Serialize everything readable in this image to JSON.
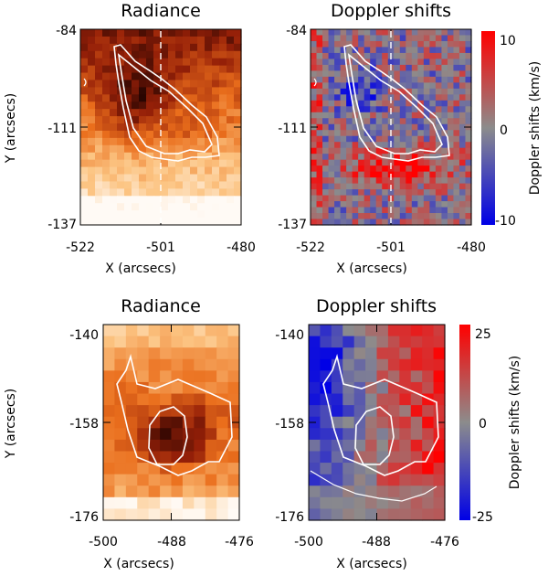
{
  "chart_data": [
    {
      "type": "heatmap",
      "title": "Radiance",
      "xlabel": "X (arcsecs)",
      "ylabel": "Y (arcsecs)",
      "xlim": [
        -522,
        -480
      ],
      "ylim": [
        -137,
        -84
      ],
      "xticks": [
        "-522",
        "-501",
        "-480"
      ],
      "yticks": [
        "-84",
        "-111",
        "-137"
      ],
      "colormap": "black-red-orange-white",
      "features": [
        "dark core near X=-505, Y=-108",
        "white contour lines",
        "dashed vertical line at X=-501"
      ]
    },
    {
      "type": "heatmap",
      "title": "Doppler shifts",
      "xlabel": "X (arcsecs)",
      "xlim": [
        -522,
        -480
      ],
      "ylim": [
        -137,
        -84
      ],
      "xticks": [
        "-522",
        "-501",
        "-480"
      ],
      "yticks": [
        "-84",
        "-111",
        "-137"
      ],
      "colorbar": {
        "label": "Doppler shifts (km/s)",
        "min": -10,
        "max": 10,
        "ticks": [
          "10",
          "0",
          "-10"
        ]
      },
      "colormap": "blue-gray-red"
    },
    {
      "type": "heatmap",
      "title": "Radiance",
      "xlabel": "X (arcsecs)",
      "ylabel": "Y (arcsecs)",
      "xlim": [
        -500,
        -476
      ],
      "ylim": [
        -176,
        -140
      ],
      "xticks": [
        "-500",
        "-488",
        "-476"
      ],
      "yticks": [
        "-140",
        "-158",
        "-176"
      ],
      "colormap": "black-red-orange-white"
    },
    {
      "type": "heatmap",
      "title": "Doppler shifts",
      "xlabel": "X (arcsecs)",
      "xlim": [
        -500,
        -476
      ],
      "ylim": [
        -176,
        -140
      ],
      "xticks": [
        "-500",
        "-488",
        "-476"
      ],
      "yticks": [
        "-140",
        "-158",
        "-176"
      ],
      "colorbar": {
        "label": "Doppler shifts (km/s)",
        "min": -25,
        "max": 25,
        "ticks": [
          "25",
          "0",
          "-25"
        ]
      },
      "colormap": "blue-gray-red"
    }
  ]
}
